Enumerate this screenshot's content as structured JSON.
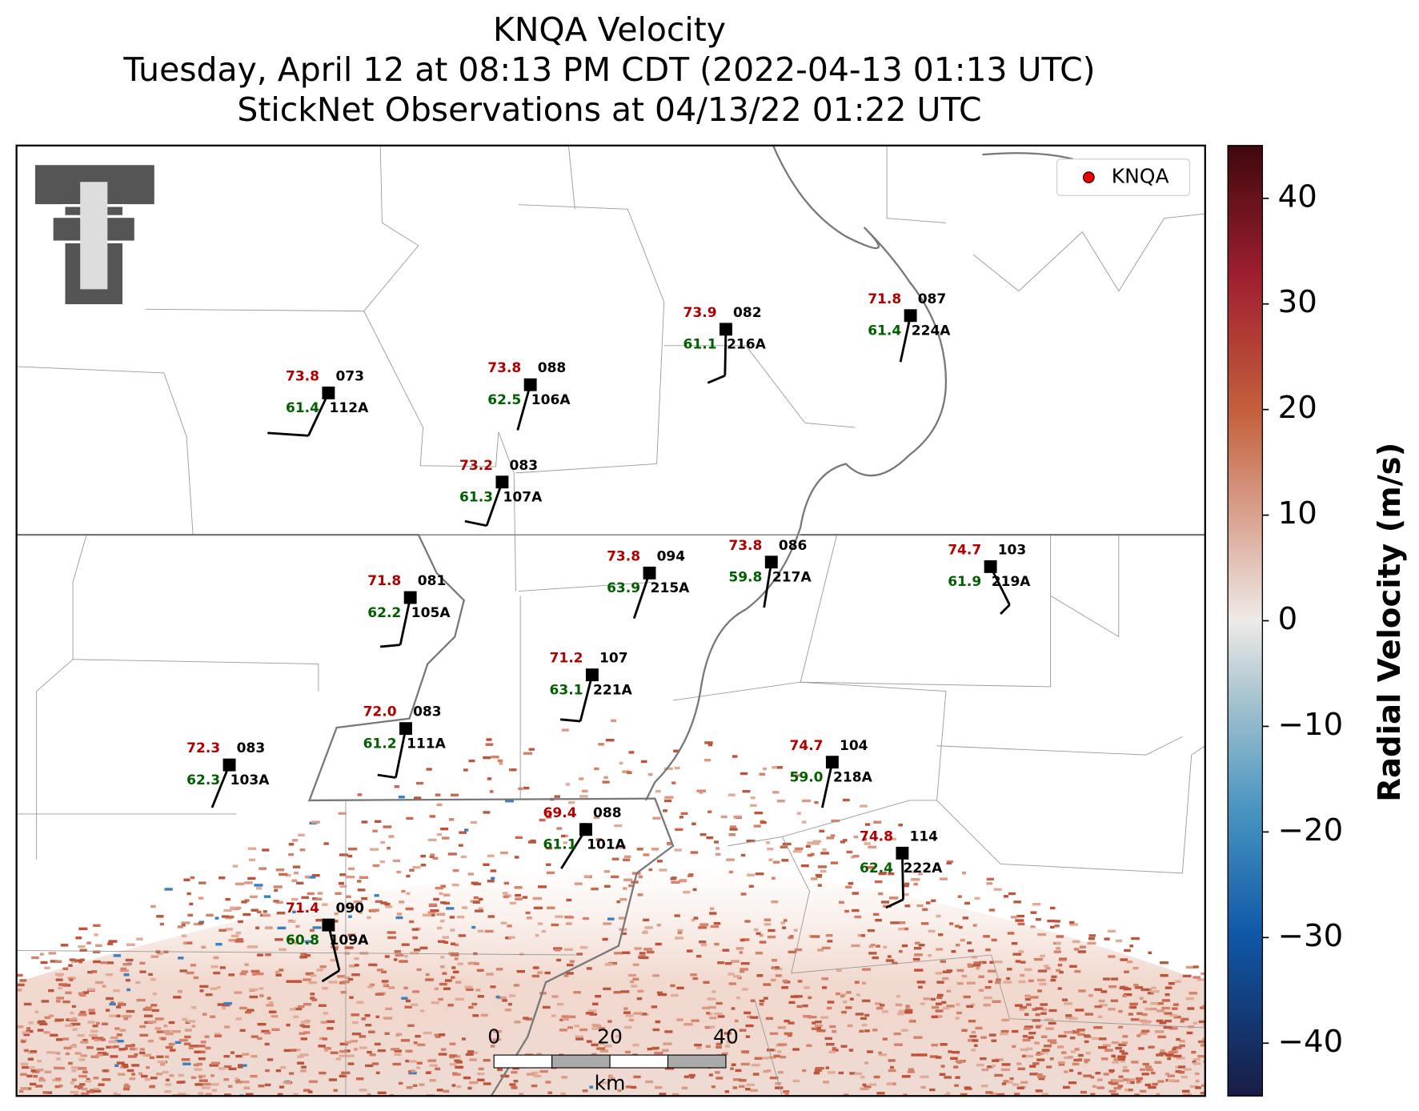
{
  "title": [
    "KNQA Velocity",
    "Tuesday, April 12 at 08:13 PM CDT (2022-04-13 01:13 UTC)",
    "StickNet Observations at 04/13/22 01:22 UTC"
  ],
  "legend": "KNQA",
  "stations": [
    {
      "temperature": "73.8",
      "code": "073",
      "dewpoint": "61.4",
      "id": "112A"
    },
    {
      "temperature": "73.8",
      "code": "088",
      "dewpoint": "62.5",
      "id": "106A"
    },
    {
      "temperature": "73.9",
      "code": "082",
      "dewpoint": "61.1",
      "id": "216A"
    },
    {
      "temperature": "71.8",
      "code": "087",
      "dewpoint": "61.4",
      "id": "224A"
    },
    {
      "temperature": "73.2",
      "code": "083",
      "dewpoint": "61.3",
      "id": "107A"
    },
    {
      "temperature": "73.8",
      "code": "094",
      "dewpoint": "63.9",
      "id": "215A"
    },
    {
      "temperature": "73.8",
      "code": "086",
      "dewpoint": "59.8",
      "id": "217A"
    },
    {
      "temperature": "74.7",
      "code": "103",
      "dewpoint": "61.9",
      "id": "219A"
    },
    {
      "temperature": "71.8",
      "code": "081",
      "dewpoint": "62.2",
      "id": "105A"
    },
    {
      "temperature": "71.2",
      "code": "107",
      "dewpoint": "63.1",
      "id": "221A"
    },
    {
      "temperature": "72.0",
      "code": "083",
      "dewpoint": "61.2",
      "id": "111A"
    },
    {
      "temperature": "72.3",
      "code": "083",
      "dewpoint": "62.3",
      "id": "103A"
    },
    {
      "temperature": "74.7",
      "code": "104",
      "dewpoint": "59.0",
      "id": "218A"
    },
    {
      "temperature": "69.4",
      "code": "088",
      "dewpoint": "61.1",
      "id": "101A"
    },
    {
      "temperature": "74.8",
      "code": "114",
      "dewpoint": "62.4",
      "id": "222A"
    },
    {
      "temperature": "71.4",
      "code": "090",
      "dewpoint": "60.8",
      "id": "109A"
    }
  ],
  "colorbar": {
    "label": "Radial Velocity (m/s)",
    "ylim": [
      -45,
      45
    ],
    "yticks": [
      40,
      30,
      20,
      10,
      0,
      {
        "value": -10,
        "label": "−10"
      },
      {
        "value": -20,
        "label": "−20"
      },
      {
        "value": -30,
        "label": "−30"
      },
      {
        "value": -40,
        "label": "−40"
      }
    ]
  },
  "scale_bar": {
    "ticks": [
      0,
      20,
      40
    ],
    "unit": "km"
  }
}
